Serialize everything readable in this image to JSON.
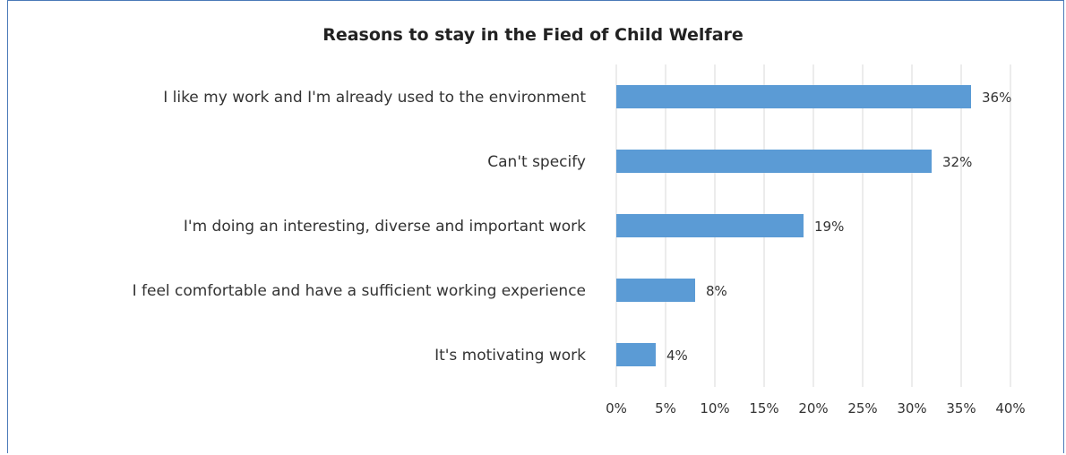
{
  "chart_data": {
    "type": "bar",
    "orientation": "horizontal",
    "title": "Reasons to stay in the Fied of Child Welfare",
    "xlabel": "",
    "ylabel": "",
    "categories": [
      "I like my work and I'm already used to the environment",
      "Can't specify",
      "I'm doing an interesting, diverse and important work",
      "I feel comfortable and have a sufficient working experience",
      "It's motivating work"
    ],
    "values": [
      0.36,
      0.32,
      0.19,
      0.08,
      0.04
    ],
    "data_labels": [
      "36%",
      "32%",
      "19%",
      "8%",
      "4%"
    ],
    "xlim": [
      0,
      0.4
    ],
    "x_ticks": [
      "0%",
      "5%",
      "10%",
      "15%",
      "20%",
      "25%",
      "30%",
      "35%",
      "40%"
    ],
    "grid": "vertical",
    "legend": "none",
    "colors": {
      "bar": "#5b9bd5",
      "grid": "#d9d9d9",
      "frame": "#4a7ab8"
    }
  }
}
